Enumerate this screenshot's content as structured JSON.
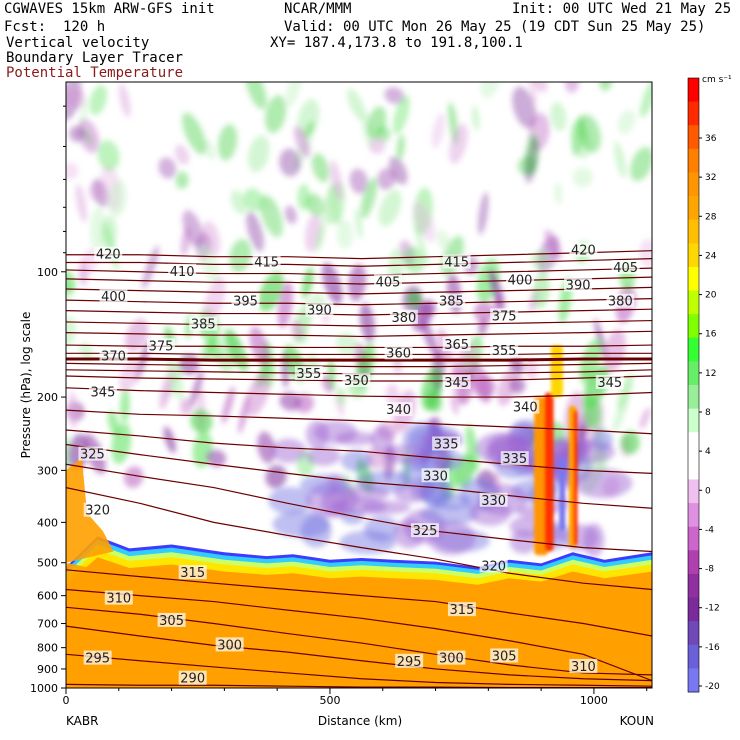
{
  "header": {
    "line1_left": "CGWAVES 15km ARW-GFS init",
    "line1_mid": "NCAR/MMM",
    "line1_right": "Init: 00 UTC Wed 21 May 25",
    "line2_left": "Fcst:  120 h",
    "line2_right": "Valid: 00 UTC Mon 26 May 25 (19 CDT Sun 25 May 25)",
    "line3_left": "Vertical velocity",
    "line3_right": "XY= 187.4,173.8 to 191.8,100.1",
    "line4_left": "Boundary Layer Tracer",
    "line5_left": "Potential Temperature"
  },
  "chart_data": {
    "type": "heatmap",
    "xlabel": "Distance (km)",
    "ylabel": "Pressure (hPa), log scale",
    "x_endpoints": [
      "KABR",
      "KOUN"
    ],
    "x_ticks": [
      0,
      500,
      1000
    ],
    "xlim": [
      0,
      1110
    ],
    "y_ticks": [
      100,
      200,
      300,
      400,
      500,
      600,
      700,
      800,
      900,
      1000
    ],
    "ylim": [
      1000,
      35
    ],
    "y_scale": "log",
    "colorbar": {
      "units": "cm s⁻¹",
      "labels": [
        36,
        32,
        28,
        24,
        20,
        16,
        12,
        8,
        4,
        0,
        -4,
        -8,
        -12,
        -16,
        -20
      ],
      "colors": [
        "#ff0000",
        "#ff2a00",
        "#ff5a00",
        "#ff7f00",
        "#ff9500",
        "#ffa500",
        "#ffbf00",
        "#ffd700",
        "#ffff00",
        "#c0ff00",
        "#7fff00",
        "#33ff33",
        "#66ee66",
        "#99ee99",
        "#ccffcc",
        "#ffffff",
        "#ffffff",
        "#f0c0f0",
        "#e090e0",
        "#cc66cc",
        "#b040b0",
        "#9030a0",
        "#7a2a9a",
        "#7048b8",
        "#6a60d8",
        "#7878f0"
      ]
    },
    "theta_contours": [
      {
        "value": 290,
        "p": [
          980,
          985,
          985,
          990,
          995,
          995,
          998,
          998,
          998
        ]
      },
      {
        "value": 295,
        "p": [
          830,
          860,
          890,
          920,
          950,
          970,
          980,
          985,
          990
        ]
      },
      {
        "value": 300,
        "p": [
          710,
          750,
          790,
          820,
          860,
          900,
          930,
          950,
          960
        ]
      },
      {
        "value": 305,
        "p": [
          640,
          665,
          700,
          740,
          780,
          830,
          880,
          920,
          930
        ]
      },
      {
        "value": 310,
        "p": [
          580,
          600,
          620,
          650,
          680,
          720,
          770,
          830,
          960
        ]
      },
      {
        "value": 315,
        "p": [
          520,
          540,
          560,
          580,
          600,
          620,
          660,
          700,
          750
        ]
      },
      {
        "value": 320,
        "p": [
          330,
          360,
          400,
          430,
          460,
          490,
          530,
          560,
          580
        ]
      },
      {
        "value": 325,
        "p": [
          290,
          310,
          330,
          360,
          390,
          420,
          440,
          460,
          470
        ]
      },
      {
        "value": 330,
        "p": [
          260,
          275,
          290,
          305,
          320,
          330,
          345,
          360,
          370
        ]
      },
      {
        "value": 335,
        "p": [
          240,
          248,
          258,
          265,
          270,
          280,
          290,
          300,
          305
        ]
      },
      {
        "value": 340,
        "p": [
          215,
          220,
          222,
          225,
          228,
          232,
          236,
          240,
          245
        ]
      },
      {
        "value": 345,
        "p": [
          190,
          193,
          195,
          197,
          199,
          200,
          200,
          198,
          195
        ]
      },
      {
        "value": 350,
        "p": [
          178,
          180,
          181,
          182,
          183,
          183,
          182,
          180,
          178
        ]
      },
      {
        "value": 355,
        "p": [
          172,
          173,
          174,
          175,
          176,
          176,
          175,
          174,
          172
        ]
      },
      {
        "value": 360,
        "p": [
          166,
          167,
          168,
          168,
          169,
          169,
          168,
          167,
          166
        ]
      },
      {
        "value": 365,
        "p": [
          162,
          162,
          163,
          163,
          163,
          163,
          163,
          162,
          162
        ]
      },
      {
        "value": 370,
        "p": [
          157,
          157,
          158,
          158,
          158,
          158,
          158,
          157,
          157
        ]
      },
      {
        "value": 375,
        "p": [
          150,
          151,
          151,
          152,
          152,
          152,
          151,
          151,
          150
        ]
      },
      {
        "value": 380,
        "p": [
          140,
          141,
          142,
          142,
          143,
          142,
          141,
          140,
          139
        ]
      },
      {
        "value": 385,
        "p": [
          132,
          133,
          134,
          134,
          135,
          134,
          133,
          132,
          131
        ]
      },
      {
        "value": 390,
        "p": [
          124,
          125,
          126,
          126,
          127,
          126,
          125,
          124,
          123
        ]
      },
      {
        "value": 395,
        "p": [
          117,
          118,
          119,
          119,
          120,
          119,
          118,
          117,
          116
        ]
      },
      {
        "value": 400,
        "p": [
          110,
          111,
          112,
          112,
          113,
          112,
          111,
          110,
          109
        ]
      },
      {
        "value": 405,
        "p": [
          104,
          105,
          106,
          106,
          107,
          106,
          105,
          104,
          103
        ]
      },
      {
        "value": 410,
        "p": [
          99,
          100,
          101,
          101,
          102,
          101,
          100,
          99,
          98
        ]
      },
      {
        "value": 415,
        "p": [
          95,
          95,
          96,
          96,
          97,
          96,
          95,
          94,
          93
        ]
      },
      {
        "value": 420,
        "p": [
          91,
          91,
          92,
          92,
          93,
          92,
          91,
          90,
          89
        ]
      }
    ],
    "theta_x": [
      0,
      140,
      280,
      420,
      560,
      700,
      840,
      980,
      1110
    ],
    "theta_labels": [
      {
        "text": "420",
        "x": 80,
        "p": 91
      },
      {
        "text": "410",
        "x": 220,
        "p": 100
      },
      {
        "text": "415",
        "x": 380,
        "p": 95
      },
      {
        "text": "405",
        "x": 610,
        "p": 106
      },
      {
        "text": "415",
        "x": 740,
        "p": 95
      },
      {
        "text": "400",
        "x": 860,
        "p": 105
      },
      {
        "text": "420",
        "x": 980,
        "p": 89
      },
      {
        "text": "405",
        "x": 1060,
        "p": 98
      },
      {
        "text": "400",
        "x": 90,
        "p": 115
      },
      {
        "text": "395",
        "x": 340,
        "p": 118
      },
      {
        "text": "390",
        "x": 480,
        "p": 124
      },
      {
        "text": "385",
        "x": 730,
        "p": 118
      },
      {
        "text": "390",
        "x": 970,
        "p": 108
      },
      {
        "text": "380",
        "x": 1050,
        "p": 118
      },
      {
        "text": "385",
        "x": 260,
        "p": 134
      },
      {
        "text": "380",
        "x": 640,
        "p": 129
      },
      {
        "text": "375",
        "x": 830,
        "p": 128
      },
      {
        "text": "370",
        "x": 90,
        "p": 160
      },
      {
        "text": "375",
        "x": 180,
        "p": 151
      },
      {
        "text": "365",
        "x": 740,
        "p": 150
      },
      {
        "text": "360",
        "x": 630,
        "p": 157
      },
      {
        "text": "355",
        "x": 460,
        "p": 176
      },
      {
        "text": "355",
        "x": 830,
        "p": 155
      },
      {
        "text": "350",
        "x": 550,
        "p": 183
      },
      {
        "text": "345",
        "x": 70,
        "p": 195
      },
      {
        "text": "345",
        "x": 740,
        "p": 185
      },
      {
        "text": "345",
        "x": 1030,
        "p": 185
      },
      {
        "text": "340",
        "x": 630,
        "p": 215
      },
      {
        "text": "340",
        "x": 870,
        "p": 212
      },
      {
        "text": "335",
        "x": 720,
        "p": 260
      },
      {
        "text": "335",
        "x": 850,
        "p": 282
      },
      {
        "text": "330",
        "x": 700,
        "p": 310
      },
      {
        "text": "330",
        "x": 810,
        "p": 355
      },
      {
        "text": "325",
        "x": 50,
        "p": 275
      },
      {
        "text": "325",
        "x": 680,
        "p": 420
      },
      {
        "text": "320",
        "x": 60,
        "p": 375
      },
      {
        "text": "320",
        "x": 810,
        "p": 510
      },
      {
        "text": "315",
        "x": 240,
        "p": 530
      },
      {
        "text": "315",
        "x": 750,
        "p": 650
      },
      {
        "text": "310",
        "x": 100,
        "p": 610
      },
      {
        "text": "310",
        "x": 980,
        "p": 890
      },
      {
        "text": "305",
        "x": 200,
        "p": 690
      },
      {
        "text": "305",
        "x": 830,
        "p": 840
      },
      {
        "text": "300",
        "x": 310,
        "p": 790
      },
      {
        "text": "300",
        "x": 730,
        "p": 850
      },
      {
        "text": "295",
        "x": 60,
        "p": 850
      },
      {
        "text": "295",
        "x": 650,
        "p": 865
      },
      {
        "text": "290",
        "x": 240,
        "p": 950
      }
    ]
  }
}
